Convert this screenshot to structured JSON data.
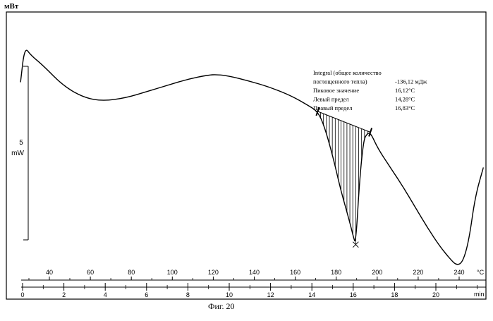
{
  "chart_data": {
    "type": "line",
    "title": "",
    "ylabel": "мВт",
    "scale_bar": {
      "value": "5",
      "unit": "mW"
    },
    "caption": "Фиг. 20",
    "temperature_axis": {
      "unit": "°C",
      "ticks": [
        "40",
        "60",
        "80",
        "100",
        "120",
        "140",
        "160",
        "180",
        "200",
        "220",
        "240"
      ]
    },
    "time_axis": {
      "unit": "min",
      "ticks": [
        "0",
        "2",
        "4",
        "6",
        "8",
        "10",
        "12",
        "14",
        "16",
        "18",
        "20"
      ]
    },
    "annotation": {
      "lines": [
        {
          "label": "Integral  (общее количество",
          "value": ""
        },
        {
          "label": "поглощенного тепла)",
          "value": "-136,12 мДж"
        },
        {
          "label": "Пиковое значение",
          "value": "16,12°C"
        },
        {
          "label": "Левый предел",
          "value": "14,28°C"
        },
        {
          "label": "Правый предел",
          "value": "16,83°C"
        }
      ]
    },
    "integration": {
      "left_limit_min": 14.28,
      "right_limit_min": 16.83,
      "peak_min": 16.12
    },
    "series": [
      {
        "x_min": [
          -0.1,
          0.1,
          0.4,
          1.0,
          2.0,
          3.0,
          3.9,
          5.0,
          6.0,
          7.0,
          8.0,
          9.0,
          9.4,
          10.0,
          11.0,
          12.0,
          13.0,
          13.8,
          14.28,
          14.6,
          15.0,
          15.4,
          15.8,
          16.0,
          16.12,
          16.3,
          16.5,
          16.65,
          16.83,
          17.2,
          17.8,
          18.4,
          19.0,
          19.6,
          20.2,
          20.7,
          21.0,
          21.3,
          21.6,
          21.9,
          22.3
        ],
        "heat_flow": [
          1.2,
          2.9,
          2.5,
          2.0,
          1.0,
          0.45,
          0.3,
          0.45,
          0.75,
          1.05,
          1.35,
          1.55,
          1.57,
          1.5,
          1.25,
          0.95,
          0.55,
          0.1,
          -0.2,
          -0.9,
          -2.3,
          -4.0,
          -5.4,
          -6.2,
          -6.6,
          -3.6,
          -1.6,
          -1.3,
          -1.2,
          -2.0,
          -2.9,
          -3.8,
          -4.8,
          -5.8,
          -6.7,
          -7.3,
          -7.6,
          -7.45,
          -6.4,
          -4.3,
          -2.9
        ]
      }
    ]
  }
}
